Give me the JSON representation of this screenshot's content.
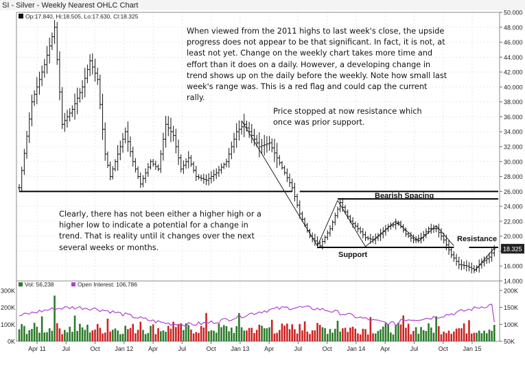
{
  "chart_data": {
    "type": "ohlc",
    "title": "SI - Silver - Weekly Nearest OHLC Chart",
    "legend": {
      "main": "Op:17.840, Hi:18.505, Lo:17.630, Cl:18.325",
      "volume": "Vol: 56,238",
      "open_interest": "Open Interest: 106,786"
    },
    "colors": {
      "price_bar": "#111111",
      "volume_up": "#2a7a2a",
      "volume_down": "#cc2222",
      "open_interest": "#b040d0",
      "last_price_box": "#222222",
      "gridline": "#d8d8d8"
    },
    "price_axis": {
      "ylim": [
        14,
        50
      ],
      "ticks": [
        "50.000",
        "48.000",
        "46.000",
        "44.000",
        "42.000",
        "40.000",
        "38.000",
        "36.000",
        "34.000",
        "32.000",
        "30.000",
        "28.000",
        "26.000",
        "24.000",
        "22.000",
        "20.000",
        "18.000",
        "16.000",
        "14.000"
      ]
    },
    "last_price": "18.325",
    "volume_axis": {
      "ylim": [
        0,
        300000
      ],
      "ticks": [
        "300K",
        "200K",
        "100K",
        "0K"
      ]
    },
    "oi_axis": {
      "ylim": [
        50000,
        200000
      ],
      "ticks": [
        "200K",
        "150K",
        "100K",
        "50K"
      ]
    },
    "x_axis": {
      "ticks": [
        "Apr 11",
        "Jul",
        "Oct",
        "Jan 12",
        "Apr",
        "Jul",
        "Oct",
        "Jan 13",
        "Apr",
        "Jul",
        "Oct",
        "Jan 14",
        "Apr",
        "Jul",
        "Oct",
        "Jan 15"
      ]
    },
    "key_points": [
      {
        "week": 0,
        "price": 26.5
      },
      {
        "week": 5,
        "price": 38
      },
      {
        "week": 10,
        "price": 43
      },
      {
        "week": 14,
        "price": 48
      },
      {
        "week": 17,
        "price": 35
      },
      {
        "week": 21,
        "price": 37
      },
      {
        "week": 25,
        "price": 40
      },
      {
        "week": 28,
        "price": 43.5
      },
      {
        "week": 31,
        "price": 41
      },
      {
        "week": 34,
        "price": 31
      },
      {
        "week": 36,
        "price": 28
      },
      {
        "week": 38,
        "price": 30
      },
      {
        "week": 42,
        "price": 34
      },
      {
        "week": 45,
        "price": 30
      },
      {
        "week": 48,
        "price": 27
      },
      {
        "week": 52,
        "price": 30
      },
      {
        "week": 55,
        "price": 29
      },
      {
        "week": 58,
        "price": 35
      },
      {
        "week": 61,
        "price": 33.5
      },
      {
        "week": 64,
        "price": 29
      },
      {
        "week": 67,
        "price": 30.5
      },
      {
        "week": 70,
        "price": 28
      },
      {
        "week": 74,
        "price": 27.5
      },
      {
        "week": 78,
        "price": 28.5
      },
      {
        "week": 82,
        "price": 30
      },
      {
        "week": 86,
        "price": 34
      },
      {
        "week": 89,
        "price": 35
      },
      {
        "week": 92,
        "price": 33.5
      },
      {
        "week": 95,
        "price": 32
      },
      {
        "week": 99,
        "price": 32.5
      },
      {
        "week": 102,
        "price": 30.5
      },
      {
        "week": 105,
        "price": 28.5
      },
      {
        "week": 108,
        "price": 26.5
      },
      {
        "week": 111,
        "price": 23
      },
      {
        "week": 115,
        "price": 20
      },
      {
        "week": 119,
        "price": 18.7
      },
      {
        "week": 123,
        "price": 21
      },
      {
        "week": 127,
        "price": 24.5
      },
      {
        "week": 131,
        "price": 22
      },
      {
        "week": 134,
        "price": 21
      },
      {
        "week": 137,
        "price": 19.8
      },
      {
        "week": 140,
        "price": 19.5
      },
      {
        "week": 143,
        "price": 20.3
      },
      {
        "week": 146,
        "price": 21.3
      },
      {
        "week": 150,
        "price": 21.8
      },
      {
        "week": 153,
        "price": 20.3
      },
      {
        "week": 156,
        "price": 19.5
      },
      {
        "week": 159,
        "price": 19.8
      },
      {
        "week": 162,
        "price": 21
      },
      {
        "week": 165,
        "price": 21
      },
      {
        "week": 168,
        "price": 19.5
      },
      {
        "week": 171,
        "price": 17.5
      },
      {
        "week": 174,
        "price": 16.2
      },
      {
        "week": 177,
        "price": 16
      },
      {
        "week": 180,
        "price": 15.5
      },
      {
        "week": 183,
        "price": 16.5
      },
      {
        "week": 186,
        "price": 17.2
      },
      {
        "week": 188,
        "price": 18.3
      }
    ],
    "horizontal_lines": [
      {
        "label": "Bearish Spacing",
        "price": 26.0
      },
      {
        "label": "",
        "price": 25.0
      },
      {
        "label": "Support",
        "price": 18.5
      },
      {
        "label": "Resistance",
        "price": 18.5
      }
    ],
    "annotations": {
      "note_top": "When viewed from the 2011 highs to last week's close, the upside progress does not appear to be that significant.  In fact, it is not, at least not yet.  Change on the weekly chart takes more time and effort than it does on a daily.  However, a developing change in trend shows up on the daily before the weekly.  Note how small last week's range was.  This is a red flag and could cap the current rally.",
      "note_middle": "Price stopped at now resistance which once was prior support.",
      "note_left": "Clearly, there has not been either a higher high or a higher low to indicate a potential for a change in trend.  That is reality until it changes over the next several weeks or months."
    }
  }
}
